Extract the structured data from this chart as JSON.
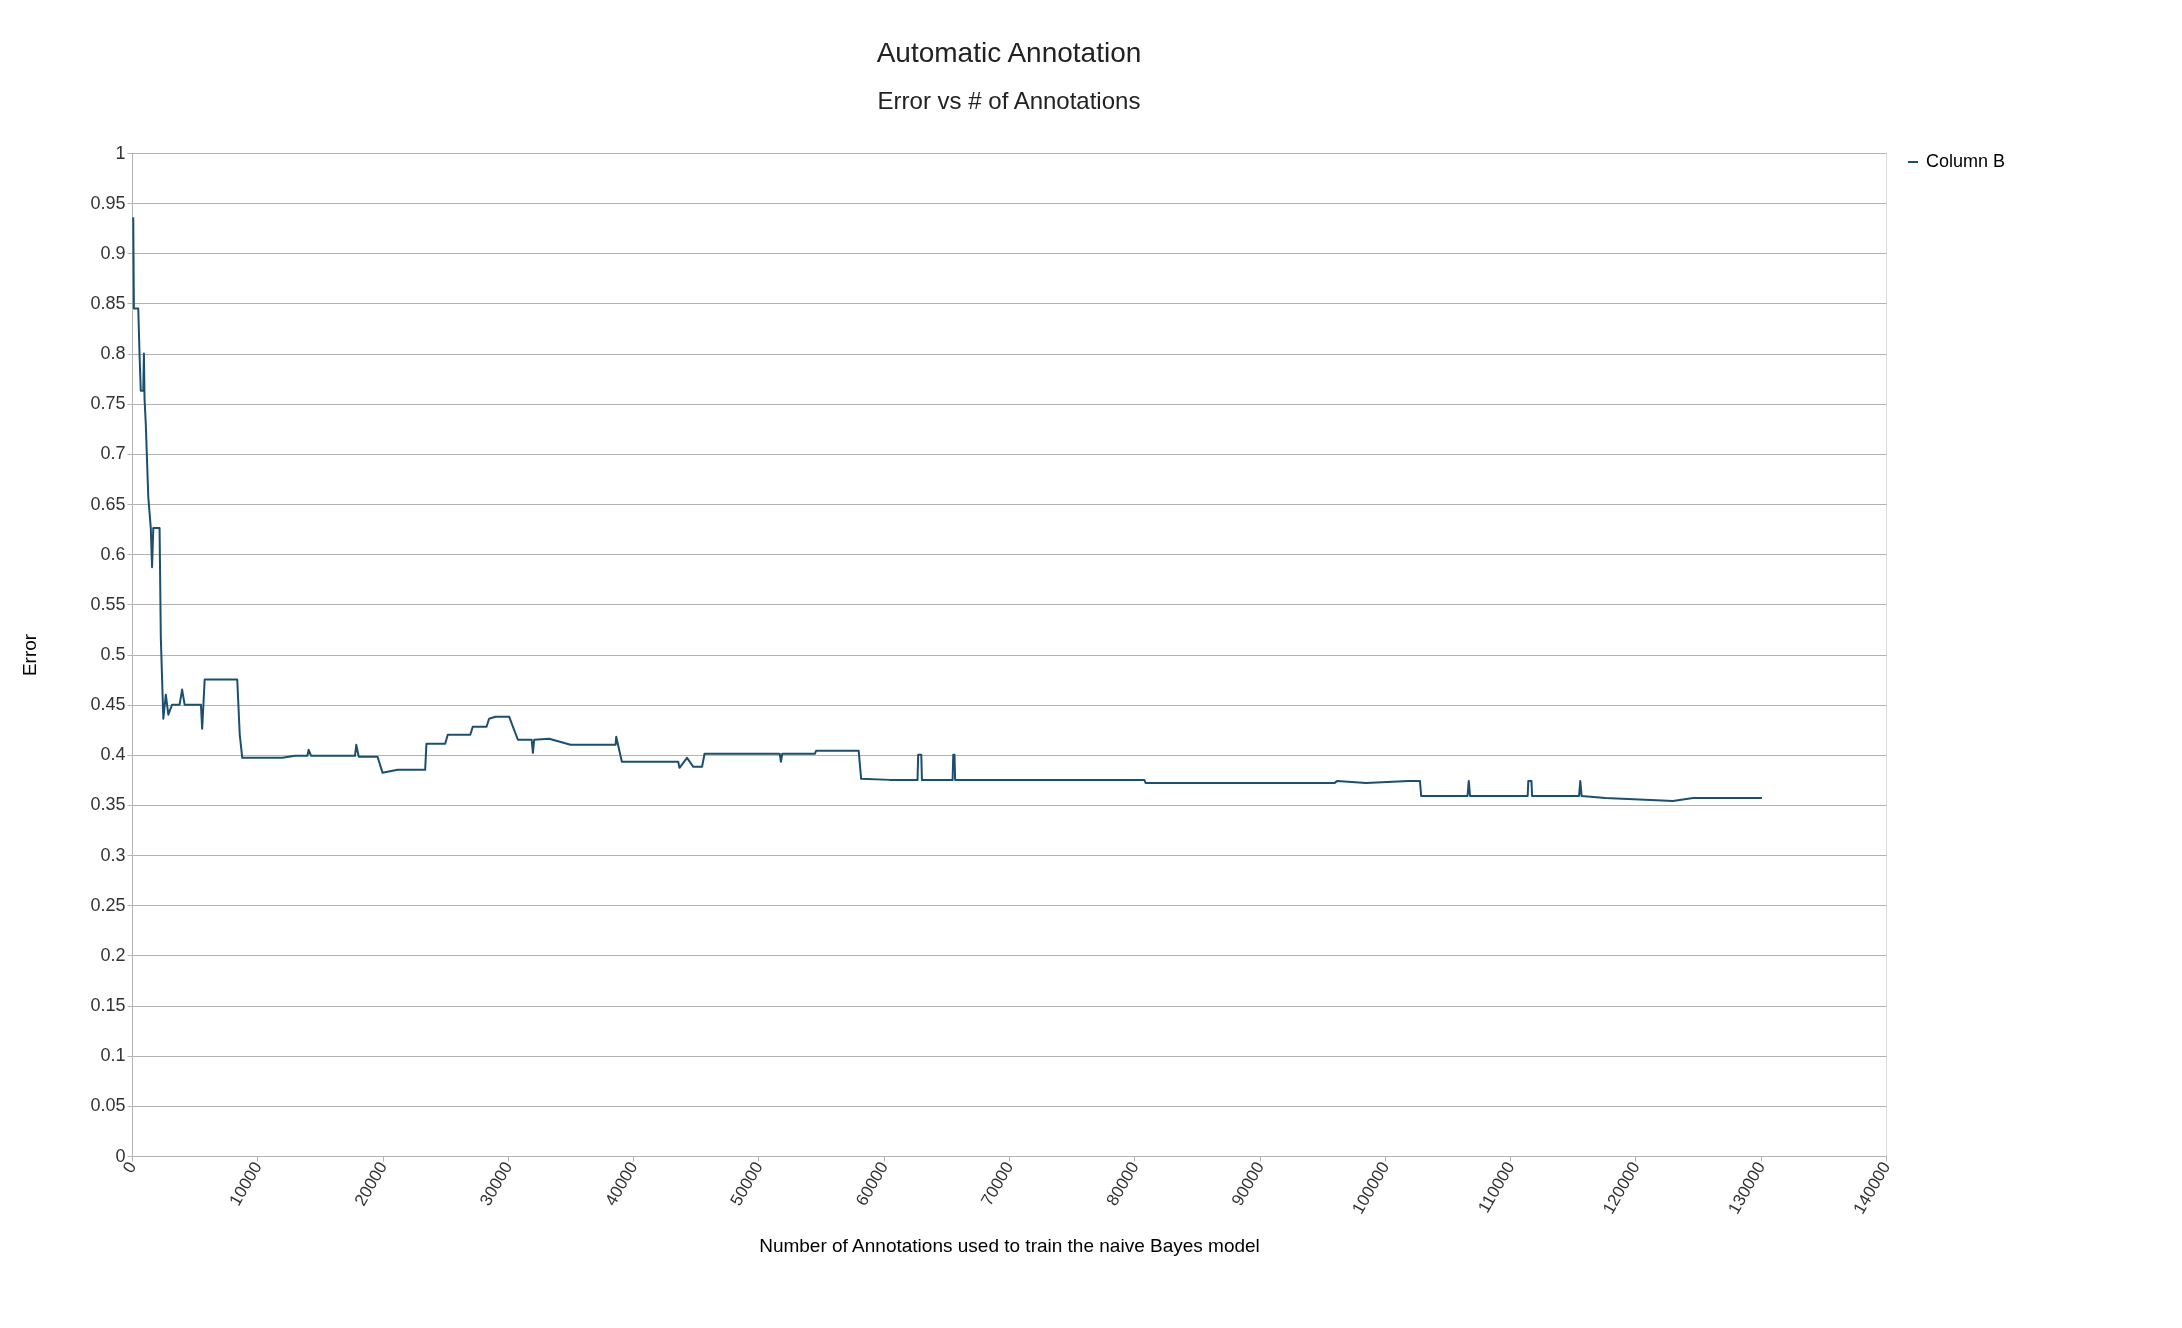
{
  "chart_data": {
    "type": "line",
    "title": "Automatic Annotation",
    "subtitle": "Error vs # of Annotations",
    "xlabel": "Number of Annotations used to train the naive Bayes model",
    "ylabel": "Error",
    "xlim": [
      0,
      140000
    ],
    "xticks": [
      0,
      10000,
      20000,
      30000,
      40000,
      50000,
      60000,
      70000,
      80000,
      90000,
      100000,
      110000,
      120000,
      130000,
      140000
    ],
    "ylim": [
      0,
      1
    ],
    "yticks": [
      0,
      0.05,
      0.1,
      0.15,
      0.2,
      0.25,
      0.3,
      0.35,
      0.4,
      0.45,
      0.5,
      0.55,
      0.6,
      0.65,
      0.7,
      0.75,
      0.8,
      0.85,
      0.9,
      0.95,
      1
    ],
    "grid": "y",
    "legend": "right",
    "marker": "none",
    "line_style": "solid",
    "series": [
      {
        "name": "Column B",
        "color": "#1c4f6f",
        "x": [
          100,
          150,
          500,
          600,
          700,
          900,
          950,
          1000,
          1100,
          1300,
          1500,
          1600,
          1700,
          2200,
          2300,
          2500,
          2700,
          2900,
          3200,
          3800,
          4000,
          4200,
          5500,
          5600,
          5700,
          5800,
          8400,
          8600,
          8800,
          12000,
          13000,
          14000,
          14100,
          14300,
          17800,
          17900,
          18100,
          19600,
          20000,
          21200,
          23400,
          23500,
          25000,
          25200,
          27000,
          27200,
          28300,
          28500,
          29000,
          30100,
          30800,
          31900,
          32000,
          32100,
          33300,
          35000,
          38600,
          38650,
          39100,
          43600,
          43700,
          44300,
          44800,
          45500,
          45700,
          51700,
          51800,
          51900,
          54500,
          54600,
          58000,
          58200,
          60500,
          62700,
          62750,
          63000,
          63050,
          65500,
          65550,
          65650,
          65700,
          80800,
          80900,
          96000,
          96200,
          98500,
          101900,
          102800,
          102900,
          106600,
          106700,
          106800,
          111400,
          111450,
          111700,
          111750,
          115500,
          115600,
          115700,
          117600,
          123000,
          124600,
          130100
        ],
        "values": [
          0.936,
          0.845,
          0.845,
          0.8,
          0.763,
          0.763,
          0.8,
          0.755,
          0.73,
          0.657,
          0.626,
          0.587,
          0.626,
          0.626,
          0.517,
          0.436,
          0.46,
          0.44,
          0.45,
          0.45,
          0.465,
          0.45,
          0.45,
          0.426,
          0.45,
          0.475,
          0.475,
          0.42,
          0.397,
          0.397,
          0.399,
          0.399,
          0.405,
          0.399,
          0.399,
          0.41,
          0.398,
          0.398,
          0.382,
          0.385,
          0.385,
          0.411,
          0.411,
          0.42,
          0.42,
          0.428,
          0.428,
          0.436,
          0.438,
          0.438,
          0.415,
          0.415,
          0.402,
          0.415,
          0.416,
          0.41,
          0.41,
          0.418,
          0.393,
          0.393,
          0.387,
          0.397,
          0.388,
          0.388,
          0.401,
          0.401,
          0.393,
          0.401,
          0.401,
          0.404,
          0.404,
          0.376,
          0.375,
          0.375,
          0.4,
          0.4,
          0.375,
          0.375,
          0.4,
          0.4,
          0.375,
          0.375,
          0.372,
          0.372,
          0.374,
          0.372,
          0.374,
          0.374,
          0.359,
          0.359,
          0.374,
          0.359,
          0.359,
          0.374,
          0.374,
          0.359,
          0.359,
          0.374,
          0.359,
          0.357,
          0.354,
          0.357,
          0.357
        ]
      }
    ]
  }
}
